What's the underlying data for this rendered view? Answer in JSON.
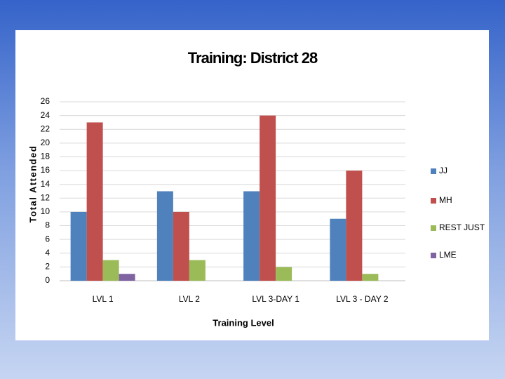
{
  "chart_data": {
    "type": "bar",
    "title": "Training: District 28",
    "x_label": "Training Level",
    "y_label": "Total Attended",
    "categories": [
      "LVL 1",
      "LVL 2",
      "LVL 3-DAY 1",
      "LVL 3 - DAY 2"
    ],
    "series": [
      {
        "name": "JJ",
        "color": "#4f81bd",
        "values": [
          10,
          13,
          13,
          9
        ]
      },
      {
        "name": "MH",
        "color": "#c0504d",
        "values": [
          23,
          10,
          24,
          16
        ]
      },
      {
        "name": "REST JUST",
        "color": "#9bbb59",
        "values": [
          3,
          3,
          2,
          1
        ]
      },
      {
        "name": "LME",
        "color": "#8064a2",
        "values": [
          1,
          0,
          0,
          0
        ]
      }
    ],
    "ylim": [
      0,
      26
    ],
    "yticks": [
      0,
      2,
      4,
      6,
      8,
      10,
      12,
      14,
      16,
      18,
      20,
      22,
      24,
      26
    ],
    "grid": true,
    "legend": "right"
  }
}
